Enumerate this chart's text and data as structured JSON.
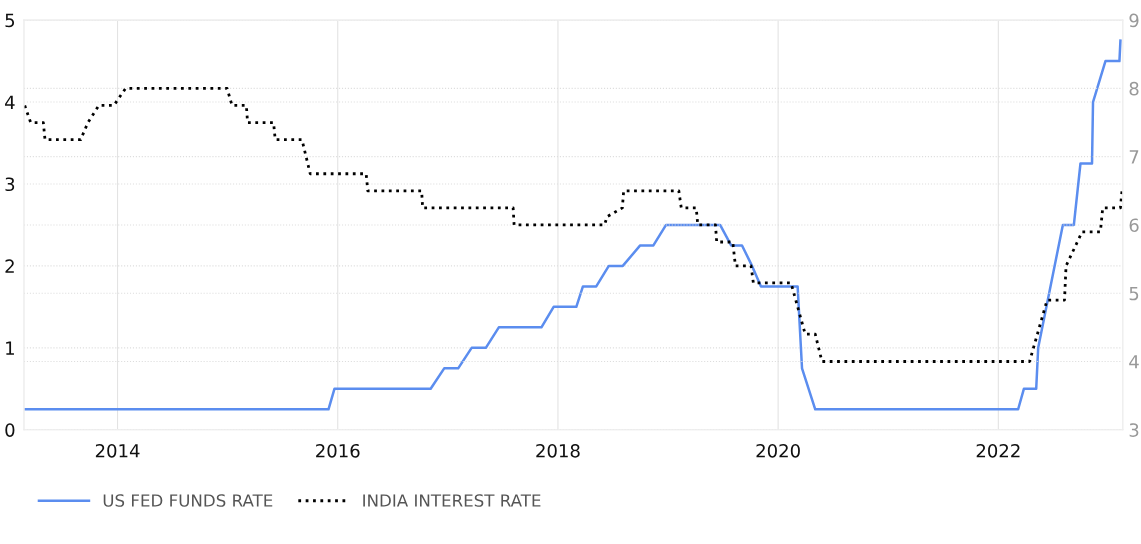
{
  "chart_data": {
    "type": "line",
    "xlim": [
      2013.15,
      2023.13
    ],
    "xticks": [
      2014,
      2016,
      2018,
      2020,
      2022
    ],
    "ylim": [
      0,
      5
    ],
    "yticks": [
      0,
      1,
      2,
      3,
      4,
      5
    ],
    "y2lim": [
      3,
      9
    ],
    "y2ticks": [
      3,
      4,
      5,
      6,
      7,
      8,
      9
    ],
    "grid": true,
    "legend": "bottom left",
    "series": [
      {
        "name": "US FED FUNDS RATE",
        "color": "#5b8def",
        "line_style": "solid",
        "x": [
          2013.157,
          2015.916,
          2015.97,
          2016.844,
          2016.967,
          2017.094,
          2017.216,
          2017.345,
          2017.463,
          2017.85,
          2017.961,
          2018.167,
          2018.227,
          2018.348,
          2018.462,
          2018.589,
          2018.747,
          2018.867,
          2018.982,
          2019.473,
          2019.573,
          2019.672,
          2019.763,
          2019.844,
          2020.117,
          2020.177,
          2020.217,
          2020.337,
          2022.18,
          2022.232,
          2022.344,
          2022.362,
          2022.586,
          2022.686,
          2022.746,
          2022.851,
          2022.86,
          2022.973,
          2023.1,
          2023.109
        ],
        "values": [
          0.25,
          0.25,
          0.5,
          0.5,
          0.75,
          0.75,
          1.0,
          1.0,
          1.25,
          1.25,
          1.5,
          1.5,
          1.75,
          1.75,
          2.0,
          2.0,
          2.25,
          2.25,
          2.5,
          2.5,
          2.25,
          2.25,
          2.0,
          1.75,
          1.75,
          1.75,
          0.75,
          0.25,
          0.25,
          0.5,
          0.5,
          1.0,
          2.5,
          2.5,
          3.25,
          3.25,
          4.0,
          4.5,
          4.5,
          4.75
        ]
      },
      {
        "name": "INDIA INTEREST RATE",
        "color": "#000000",
        "line_style": "dotted",
        "axis": "y2",
        "x": [
          2013.157,
          2013.211,
          2013.326,
          2013.341,
          2013.665,
          2013.731,
          2013.83,
          2013.966,
          2014.073,
          2014.995,
          2015.04,
          2015.17,
          2015.181,
          2015.417,
          2015.432,
          2015.675,
          2015.75,
          2016.258,
          2016.273,
          2016.762,
          2016.771,
          2017.593,
          2017.602,
          2018.424,
          2018.445,
          2018.585,
          2018.597,
          2019.098,
          2019.12,
          2019.256,
          2019.27,
          2019.431,
          2019.442,
          2019.588,
          2019.612,
          2019.754,
          2019.775,
          2020.117,
          2020.246,
          2020.337,
          2020.398,
          2022.284,
          2022.443,
          2022.601,
          2022.615,
          2022.761,
          2022.927,
          2022.948,
          2023.109,
          2023.123
        ],
        "values": [
          7.75,
          7.5,
          7.5,
          7.25,
          7.25,
          7.5,
          7.75,
          7.75,
          8.0,
          8.0,
          7.75,
          7.75,
          7.5,
          7.5,
          7.25,
          7.25,
          6.75,
          6.75,
          6.5,
          6.5,
          6.25,
          6.25,
          6.0,
          6.0,
          6.12,
          6.25,
          6.5,
          6.5,
          6.25,
          6.25,
          6.0,
          6.0,
          5.75,
          5.75,
          5.4,
          5.4,
          5.15,
          5.15,
          4.4,
          4.4,
          4.0,
          4.0,
          4.9,
          4.9,
          5.4,
          5.9,
          5.9,
          6.25,
          6.25,
          6.5
        ]
      }
    ]
  }
}
